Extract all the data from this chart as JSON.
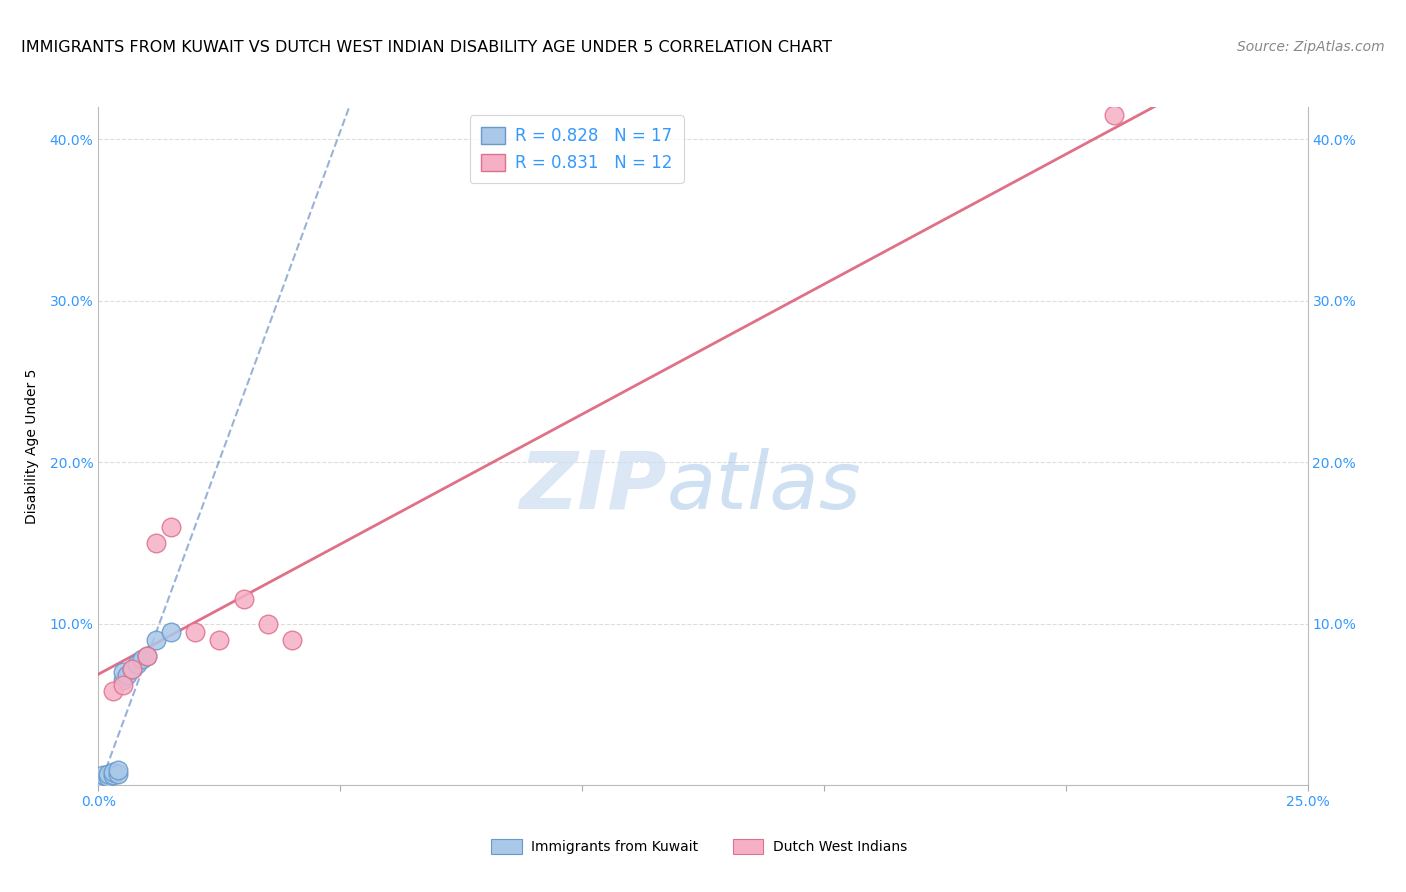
{
  "title": "IMMIGRANTS FROM KUWAIT VS DUTCH WEST INDIAN DISABILITY AGE UNDER 5 CORRELATION CHART",
  "source": "Source: ZipAtlas.com",
  "ylabel": "Disability Age Under 5",
  "xlim": [
    0.0,
    0.25
  ],
  "ylim": [
    0.0,
    0.42
  ],
  "xticks": [
    0.0,
    0.05,
    0.1,
    0.15,
    0.2,
    0.25
  ],
  "yticks": [
    0.0,
    0.1,
    0.2,
    0.3,
    0.4
  ],
  "xticklabels": [
    "0.0%",
    "",
    "",
    "",
    "",
    "25.0%"
  ],
  "yticklabels": [
    "",
    "10.0%",
    "20.0%",
    "30.0%",
    "40.0%"
  ],
  "kuwait_x": [
    0.001,
    0.001,
    0.002,
    0.002,
    0.003,
    0.003,
    0.004,
    0.004,
    0.005,
    0.005,
    0.006,
    0.007,
    0.008,
    0.009,
    0.01,
    0.012,
    0.015
  ],
  "kuwait_y": [
    0.004,
    0.006,
    0.005,
    0.007,
    0.006,
    0.008,
    0.007,
    0.009,
    0.065,
    0.07,
    0.068,
    0.072,
    0.075,
    0.078,
    0.08,
    0.09,
    0.095
  ],
  "dutch_x": [
    0.003,
    0.005,
    0.007,
    0.01,
    0.012,
    0.015,
    0.02,
    0.025,
    0.03,
    0.035,
    0.04,
    0.21
  ],
  "dutch_y": [
    0.058,
    0.062,
    0.072,
    0.08,
    0.15,
    0.16,
    0.095,
    0.09,
    0.115,
    0.1,
    0.09,
    0.415
  ],
  "kuwait_color": "#aac8e8",
  "dutch_color": "#f5b0c5",
  "kuwait_edge": "#6699cc",
  "dutch_edge": "#e07090",
  "kuwait_trend_color": "#5580bb",
  "dutch_trend_color": "#dd607a",
  "kuwait_R": 0.828,
  "kuwait_N": 17,
  "dutch_R": 0.831,
  "dutch_N": 12,
  "legend_kuwait": "Immigrants from Kuwait",
  "legend_dutch": "Dutch West Indians",
  "watermark_zip": "ZIP",
  "watermark_atlas": "atlas",
  "title_fontsize": 11.5,
  "axis_label_fontsize": 10,
  "tick_fontsize": 10,
  "source_fontsize": 10,
  "background_color": "#ffffff",
  "grid_color": "#dddddd"
}
